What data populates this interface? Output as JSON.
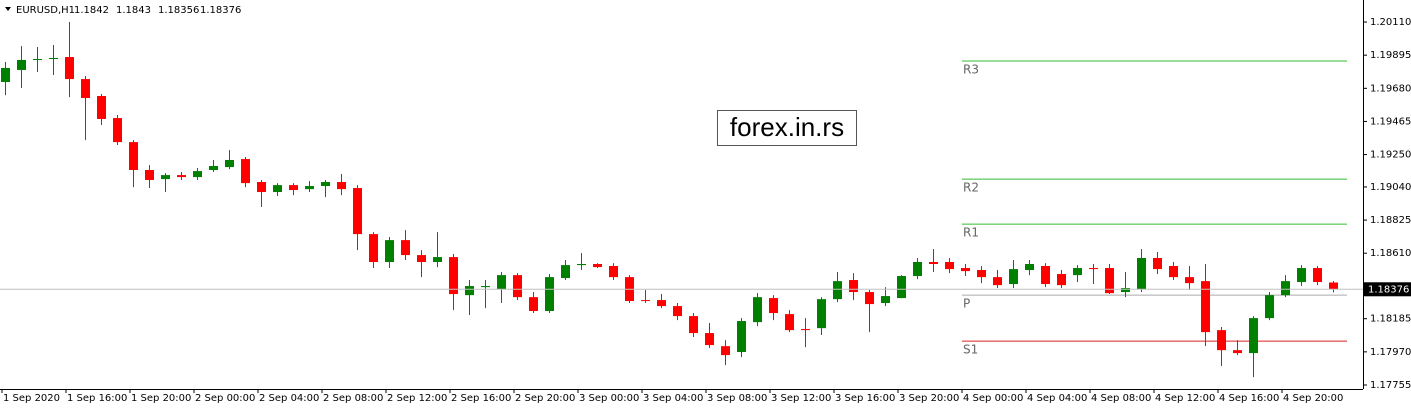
{
  "chart_data": {
    "type": "candlestick",
    "title": "EURUSD,H1",
    "watermark": "forex.in.rs",
    "up_color": "#008000",
    "down_color": "#ff0000",
    "categories": [
      "1 Sep 2020",
      null,
      null,
      null,
      "1 Sep 16:00",
      null,
      null,
      null,
      "1 Sep 20:00",
      null,
      null,
      null,
      "2 Sep 00:00",
      null,
      null,
      null,
      "2 Sep 04:00",
      null,
      null,
      null,
      "2 Sep 08:00",
      null,
      null,
      null,
      "2 Sep 12:00",
      null,
      null,
      null,
      "2 Sep 16:00",
      null,
      null,
      null,
      "2 Sep 20:00",
      null,
      null,
      null,
      "3 Sep 00:00",
      null,
      null,
      null,
      "3 Sep 04:00",
      null,
      null,
      null,
      "3 Sep 08:00",
      null,
      null,
      null,
      "3 Sep 12:00",
      null,
      null,
      null,
      "3 Sep 16:00",
      null,
      null,
      null,
      "3 Sep 20:00",
      null,
      null,
      null,
      "4 Sep 00:00",
      null,
      null,
      null,
      "4 Sep 04:00",
      null,
      null,
      null,
      "4 Sep 08:00",
      null,
      null,
      null,
      "4 Sep 12:00",
      null,
      null,
      null,
      "4 Sep 16:00",
      null,
      null,
      null,
      "4 Sep 20:00",
      null,
      null,
      null
    ],
    "open": [
      1.19721,
      1.19799,
      1.19864,
      1.1987,
      1.19883,
      1.1974,
      1.1963,
      1.19487,
      1.19331,
      1.1915,
      1.19091,
      1.19117,
      1.19104,
      1.1915,
      1.19169,
      1.19221,
      1.19072,
      1.19007,
      1.19052,
      1.19026,
      1.19046,
      1.19072,
      1.19033,
      1.18734,
      1.18553,
      1.18695,
      1.18598,
      1.18553,
      1.18585,
      1.18338,
      1.1839,
      1.18377,
      1.18468,
      1.18325,
      1.18235,
      1.18449,
      1.18533,
      1.1854,
      1.18527,
      1.18455,
      1.18306,
      1.18306,
      1.18267,
      1.18202,
      1.18092,
      1.18007,
      1.17969,
      1.18163,
      1.18319,
      1.18215,
      1.18118,
      1.18124,
      1.18312,
      1.18436,
      1.18358,
      1.18287,
      1.18319,
      1.18462,
      1.18553,
      1.18553,
      1.18514,
      1.18501,
      1.18455,
      1.1841,
      1.18501,
      1.18527,
      1.18475,
      1.18468,
      1.18514,
      1.18514,
      1.18358,
      1.18377,
      1.18579,
      1.18527,
      1.18455,
      1.18429,
      1.18111,
      1.17981,
      1.17962,
      1.18189,
      1.18338,
      1.18423,
      1.18514,
      1.1842
    ],
    "high": [
      1.19851,
      1.19954,
      1.19948,
      1.19961,
      1.2011,
      1.1976,
      1.19643,
      1.19507,
      1.19344,
      1.19182,
      1.1913,
      1.19137,
      1.19163,
      1.19215,
      1.19279,
      1.19234,
      1.19085,
      1.19065,
      1.19065,
      1.19078,
      1.19085,
      1.19124,
      1.19052,
      1.18747,
      1.18715,
      1.1876,
      1.1863,
      1.18747,
      1.18605,
      1.18436,
      1.18436,
      1.18488,
      1.18481,
      1.18358,
      1.18475,
      1.18566,
      1.18611,
      1.18546,
      1.18546,
      1.18468,
      1.18371,
      1.18345,
      1.18287,
      1.18222,
      1.18157,
      1.18046,
      1.18189,
      1.18351,
      1.18338,
      1.18241,
      1.18189,
      1.18325,
      1.18488,
      1.18481,
      1.18371,
      1.1839,
      1.18468,
      1.18579,
      1.18637,
      1.18579,
      1.1854,
      1.18527,
      1.18501,
      1.18566,
      1.18566,
      1.18546,
      1.18501,
      1.18533,
      1.1854,
      1.1854,
      1.18488,
      1.18637,
      1.18618,
      1.18553,
      1.18527,
      1.1854,
      1.18131,
      1.18046,
      1.18202,
      1.18358,
      1.18468,
      1.18533,
      1.18527,
      1.1843
    ],
    "low": [
      1.19636,
      1.19682,
      1.19786,
      1.19766,
      1.19623,
      1.19344,
      1.19442,
      1.19312,
      1.19039,
      1.19033,
      1.19007,
      1.19085,
      1.19085,
      1.19137,
      1.19156,
      1.19039,
      1.1891,
      1.18981,
      1.18987,
      1.19007,
      1.18974,
      1.18987,
      1.1863,
      1.18514,
      1.18514,
      1.18566,
      1.18455,
      1.1852,
      1.18241,
      1.18209,
      1.18254,
      1.18287,
      1.18306,
      1.18222,
      1.18222,
      1.18436,
      1.18501,
      1.18514,
      1.18436,
      1.18287,
      1.18287,
      1.18254,
      1.18176,
      1.18066,
      1.17994,
      1.17884,
      1.17936,
      1.18137,
      1.18176,
      1.18098,
      1.18001,
      1.18079,
      1.18293,
      1.18306,
      1.18098,
      1.18267,
      1.18319,
      1.18442,
      1.18488,
      1.18481,
      1.18462,
      1.18416,
      1.18384,
      1.18384,
      1.18468,
      1.1839,
      1.18384,
      1.18423,
      1.1841,
      1.18345,
      1.18325,
      1.18358,
      1.18475,
      1.18436,
      1.18371,
      1.18007,
      1.17878,
      1.17949,
      1.17806,
      1.18176,
      1.18325,
      1.18397,
      1.18403,
      1.18356
    ],
    "close": [
      1.19812,
      1.19864,
      1.1987,
      1.19877,
      1.1974,
      1.19617,
      1.19481,
      1.19331,
      1.1915,
      1.19085,
      1.19117,
      1.19104,
      1.19143,
      1.19176,
      1.19215,
      1.19065,
      1.19007,
      1.19052,
      1.1902,
      1.19046,
      1.19072,
      1.19026,
      1.18734,
      1.18553,
      1.18695,
      1.18598,
      1.18553,
      1.18585,
      1.18345,
      1.18397,
      1.18397,
      1.18468,
      1.18325,
      1.18235,
      1.18455,
      1.18533,
      1.1854,
      1.1852,
      1.18455,
      1.183,
      1.183,
      1.18267,
      1.18202,
      1.18092,
      1.18014,
      1.17949,
      1.1817,
      1.18325,
      1.18222,
      1.18111,
      1.18111,
      1.18312,
      1.18429,
      1.18358,
      1.1828,
      1.18332,
      1.18462,
      1.18553,
      1.1854,
      1.18507,
      1.18494,
      1.18455,
      1.18403,
      1.18507,
      1.1854,
      1.1841,
      1.18403,
      1.18514,
      1.18507,
      1.18351,
      1.18384,
      1.18579,
      1.18507,
      1.18455,
      1.18416,
      1.18098,
      1.17981,
      1.17962,
      1.18189,
      1.18338,
      1.18429,
      1.18514,
      1.18423,
      1.18376
    ],
    "pivots": [
      {
        "label": "R3",
        "value": 1.19857,
        "color": "#33bb33"
      },
      {
        "label": "R2",
        "value": 1.19091,
        "color": "#33bb33"
      },
      {
        "label": "R1",
        "value": 1.18799,
        "color": "#33bb33"
      },
      {
        "label": "P",
        "value": 1.18338,
        "color": "#aaaaaa"
      },
      {
        "label": "S1",
        "value": 1.1804,
        "color": "#dd2222"
      }
    ],
    "ylim": [
      1.17729,
      1.20253
    ],
    "yticks": [
      {
        "value": 1.2011,
        "label": "1.20110"
      },
      {
        "value": 1.19895,
        "label": "1.19895"
      },
      {
        "value": 1.1968,
        "label": "1.19680"
      },
      {
        "value": 1.19465,
        "label": "1.19465"
      },
      {
        "value": 1.1925,
        "label": "1.19250"
      },
      {
        "value": 1.1904,
        "label": "1.19040"
      },
      {
        "value": 1.18825,
        "label": "1.18825"
      },
      {
        "value": 1.1861,
        "label": "1.18610"
      },
      {
        "value": 1.18185,
        "label": "1.18185"
      },
      {
        "value": 1.1797,
        "label": "1.17970"
      },
      {
        "value": 1.17755,
        "label": "1.17755"
      }
    ],
    "grid": false
  }
}
